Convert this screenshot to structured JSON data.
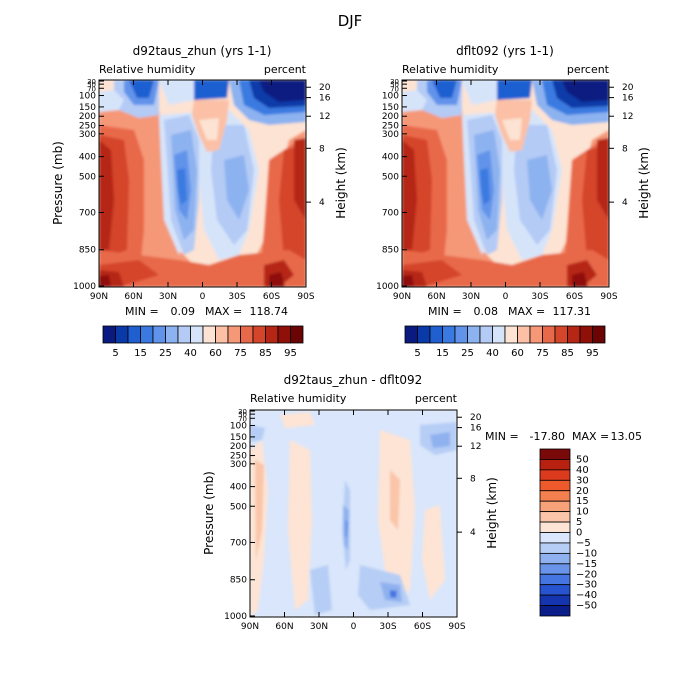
{
  "suptitle": "DJF",
  "chart_data": [
    {
      "type": "heatmap",
      "title": "d92taus_zhun (yrs 1-1)",
      "subtitle_left": "Relative humidity",
      "subtitle_right": "percent",
      "ylabel": "Pressure (mb)",
      "ylabel_right": "Height (km)",
      "xticks": [
        "90N",
        "60N",
        "30N",
        "0",
        "30S",
        "60S",
        "90S"
      ],
      "yticks": [
        "30",
        "50",
        "70",
        "100",
        "150",
        "200",
        "250",
        "300",
        "400",
        "500",
        "700",
        "850",
        "1000"
      ],
      "yticks_right": [
        "20",
        "16",
        "12",
        "8",
        "4"
      ],
      "min_label": "MIN =",
      "max_label": "MAX =",
      "min": "0.09",
      "max": "118.74",
      "levels": [
        5,
        10,
        15,
        20,
        25,
        30,
        40,
        50,
        60,
        70,
        75,
        80,
        85,
        90,
        95
      ],
      "colorbar_labels": [
        "5",
        "15",
        "25",
        "40",
        "60",
        "75",
        "85",
        "95"
      ]
    },
    {
      "type": "heatmap",
      "title": "dflt092 (yrs 1-1)",
      "subtitle_left": "Relative humidity",
      "subtitle_right": "percent",
      "ylabel": "Pressure (mb)",
      "ylabel_right": "Height (km)",
      "xticks": [
        "90N",
        "60N",
        "30N",
        "0",
        "30S",
        "60S",
        "90S"
      ],
      "yticks": [
        "30",
        "50",
        "70",
        "100",
        "150",
        "200",
        "250",
        "300",
        "400",
        "500",
        "700",
        "850",
        "1000"
      ],
      "yticks_right": [
        "20",
        "16",
        "12",
        "8",
        "4"
      ],
      "min_label": "MIN =",
      "max_label": "MAX =",
      "min": "0.08",
      "max": "117.31",
      "levels": [
        5,
        10,
        15,
        20,
        25,
        30,
        40,
        50,
        60,
        70,
        75,
        80,
        85,
        90,
        95
      ],
      "colorbar_labels": [
        "5",
        "15",
        "25",
        "40",
        "60",
        "75",
        "85",
        "95"
      ]
    },
    {
      "type": "heatmap",
      "title": "d92taus_zhun - dflt092",
      "subtitle_left": "Relative humidity",
      "subtitle_right": "percent",
      "ylabel": "Pressure (mb)",
      "ylabel_right": "Height (km)",
      "xticks": [
        "90N",
        "60N",
        "30N",
        "0",
        "30S",
        "60S",
        "90S"
      ],
      "yticks": [
        "30",
        "50",
        "70",
        "100",
        "150",
        "200",
        "250",
        "300",
        "400",
        "500",
        "700",
        "850",
        "1000"
      ],
      "yticks_right": [
        "20",
        "16",
        "12",
        "8",
        "4"
      ],
      "min_label": "MIN =",
      "max_label": "MAX =",
      "min": "-17.80",
      "max": "13.05",
      "levels": [
        50,
        40,
        30,
        20,
        15,
        10,
        5,
        0,
        -5,
        -10,
        -15,
        -20,
        -30,
        -40,
        -50
      ],
      "colorbar_labels": [
        "50",
        "40",
        "30",
        "20",
        "15",
        "10",
        "5",
        "0",
        "−5",
        "−10",
        "−15",
        "−20",
        "−30",
        "−40",
        "−50"
      ]
    }
  ],
  "colors": {
    "rh_scale": [
      "#0a1a80",
      "#0a3aa8",
      "#1f5fd0",
      "#3a7ae0",
      "#6293ea",
      "#8db2f0",
      "#b4cbf5",
      "#d6e4fa",
      "#fde3d3",
      "#fbc0a5",
      "#f59878",
      "#e8694a",
      "#d4452a",
      "#b52714",
      "#8f1009",
      "#6b0505"
    ],
    "diff_scale": [
      "#7a0a0a",
      "#b8200f",
      "#dc3a1c",
      "#ef5a2c",
      "#f4804f",
      "#f7a279",
      "#fac5a8",
      "#fde4d4",
      "#d9e6fb",
      "#b6cdf5",
      "#8fb1ef",
      "#6a93ea",
      "#4575e0",
      "#2753d0",
      "#1434b0",
      "#0b1d88"
    ]
  }
}
